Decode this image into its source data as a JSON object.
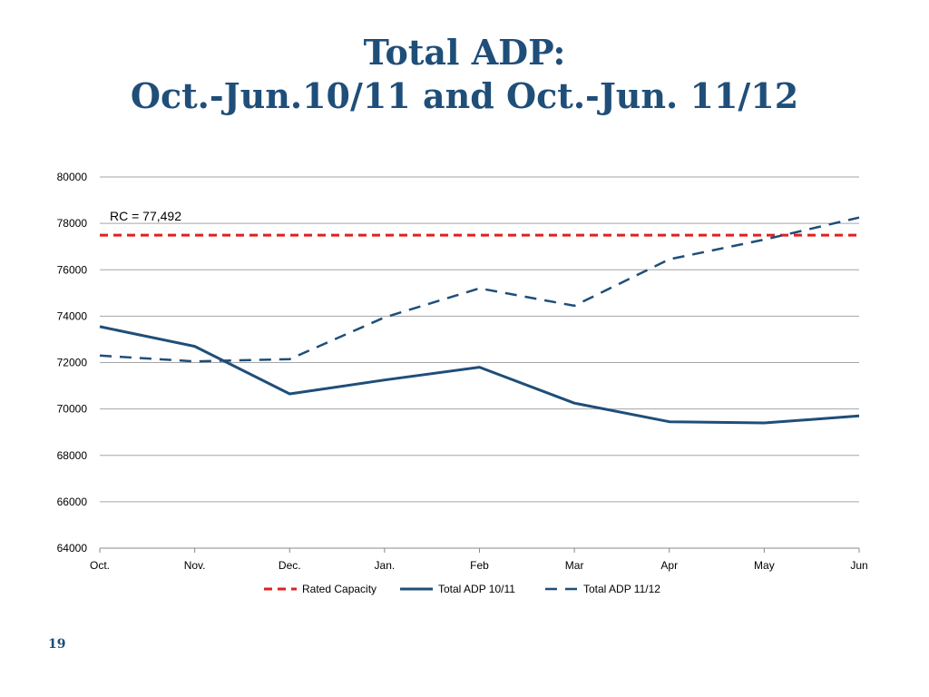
{
  "slide": {
    "title_line1": "Total ADP:",
    "title_line2": "Oct.-Jun.10/11 and Oct.-Jun. 11/12",
    "page_number": "19"
  },
  "chart_data": {
    "type": "line",
    "categories": [
      "Oct.",
      "Nov.",
      "Dec.",
      "Jan.",
      "Feb",
      "Mar",
      "Apr",
      "May",
      "Jun"
    ],
    "ylim": [
      64000,
      80000
    ],
    "yticks": [
      "64000",
      "66000",
      "68000",
      "70000",
      "72000",
      "74000",
      "76000",
      "78000",
      "80000"
    ],
    "grid": true,
    "legend_position": "bottom",
    "annotation": "RC = 77,492",
    "series": [
      {
        "name": "Rated Capacity",
        "color": "#e02020",
        "style": "dashed-thick",
        "values": [
          77492,
          77492,
          77492,
          77492,
          77492,
          77492,
          77492,
          77492,
          77492
        ]
      },
      {
        "name": "Total ADP 10/11",
        "color": "#1f4e79",
        "style": "solid",
        "values": [
          73550,
          72700,
          70650,
          71250,
          71800,
          70250,
          69450,
          69400,
          69700
        ]
      },
      {
        "name": "Total ADP 11/12",
        "color": "#1f4e79",
        "style": "dashed",
        "values": [
          72300,
          72050,
          72150,
          73950,
          75200,
          74450,
          76450,
          77300,
          78250
        ]
      }
    ]
  }
}
